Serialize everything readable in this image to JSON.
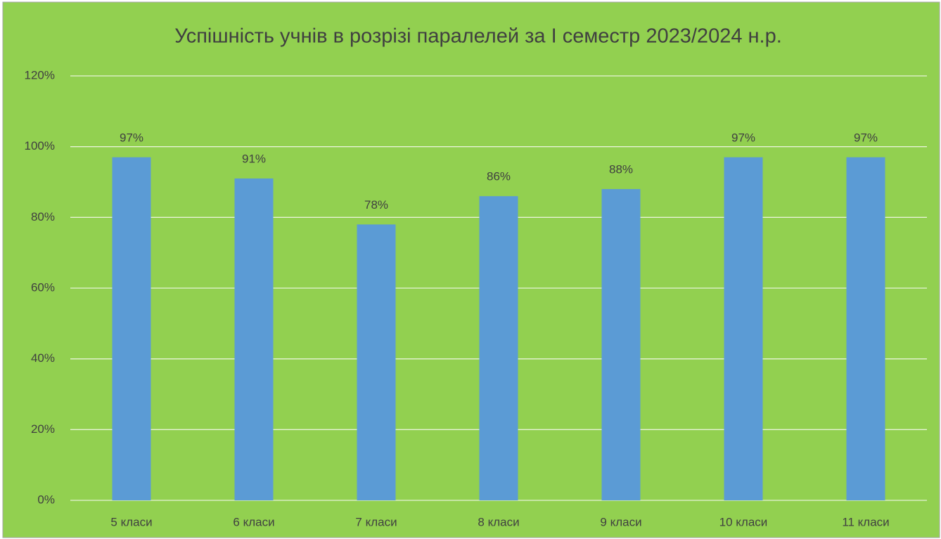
{
  "chart_data": {
    "type": "bar",
    "title": "Успішність учнів в розрізі паралелей за І семестр 2023/2024 н.р.",
    "categories": [
      "5 класи",
      "6 класи",
      "7 класи",
      "8 класи",
      "9 класи",
      "10 класи",
      "11 класи"
    ],
    "values": [
      97,
      91,
      78,
      86,
      88,
      97,
      97
    ],
    "value_labels": [
      "97%",
      "91%",
      "78%",
      "86%",
      "88%",
      "97%",
      "97%"
    ],
    "color": "#5b9bd5",
    "ylim": [
      0,
      120
    ],
    "yticks": [
      {
        "value": 0,
        "label": "0%"
      },
      {
        "value": 20,
        "label": "20%"
      },
      {
        "value": 40,
        "label": "40%"
      },
      {
        "value": 60,
        "label": "60%"
      },
      {
        "value": 80,
        "label": "80%"
      },
      {
        "value": 100,
        "label": "100%"
      },
      {
        "value": 120,
        "label": "120%"
      }
    ],
    "grid": true
  }
}
